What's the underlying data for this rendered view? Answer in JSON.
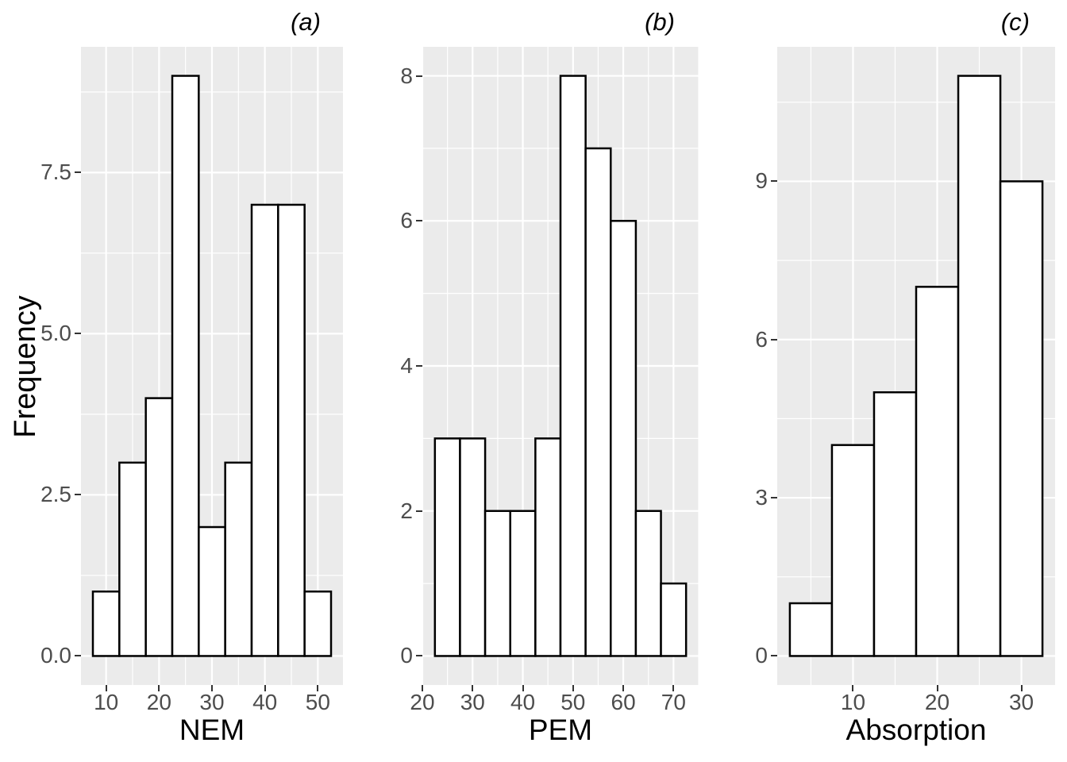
{
  "figure": {
    "ylabel": "Frequency",
    "background": "#FFFFFF",
    "panel_background": "#EBEBEB",
    "grid_color": "#FFFFFF",
    "bar_fill": "#FFFFFF",
    "bar_stroke": "#000000",
    "axis_text_color": "#4D4D4D",
    "axis_title_color": "#000000",
    "tick_mark_color": "#333333"
  },
  "chart_data": [
    {
      "type": "bar",
      "subtype": "histogram",
      "title": "(a)",
      "xlabel": "NEM",
      "ylabel": "Frequency",
      "bin_start": 7.5,
      "bin_width": 5,
      "bin_edges": [
        7.5,
        12.5,
        17.5,
        22.5,
        27.5,
        32.5,
        37.5,
        42.5,
        47.5,
        52.5
      ],
      "values": [
        1,
        3,
        4,
        9,
        2,
        3,
        7,
        7,
        1
      ],
      "x_ticks": [
        10,
        20,
        30,
        40,
        50
      ],
      "y_ticks": [
        "0.0",
        "2.5",
        "5.0",
        "7.5"
      ],
      "y_tick_values": [
        0,
        2.5,
        5,
        7.5
      ],
      "xlim": [
        5.25,
        54.75
      ],
      "ylim": [
        -0.45,
        9.45
      ],
      "grid": true,
      "legend": false
    },
    {
      "type": "bar",
      "subtype": "histogram",
      "title": "(b)",
      "xlabel": "PEM",
      "ylabel": "Frequency",
      "bin_start": 22.5,
      "bin_width": 5,
      "bin_edges": [
        22.5,
        27.5,
        32.5,
        37.5,
        42.5,
        47.5,
        52.5,
        57.5,
        62.5,
        67.5,
        72.5
      ],
      "values": [
        3,
        3,
        2,
        2,
        3,
        8,
        7,
        6,
        2,
        1
      ],
      "x_ticks": [
        20,
        30,
        40,
        50,
        60,
        70
      ],
      "y_ticks": [
        "0",
        "2",
        "4",
        "6",
        "8"
      ],
      "y_tick_values": [
        0,
        2,
        4,
        6,
        8
      ],
      "xlim": [
        20,
        75
      ],
      "ylim": [
        -0.4,
        8.4
      ],
      "grid": true,
      "legend": false
    },
    {
      "type": "bar",
      "subtype": "histogram",
      "title": "(c)",
      "xlabel": "Absorption",
      "ylabel": "Frequency",
      "bin_start": 2.5,
      "bin_width": 5,
      "bin_edges": [
        2.5,
        7.5,
        12.5,
        17.5,
        22.5,
        27.5,
        32.5
      ],
      "values": [
        1,
        4,
        5,
        7,
        11,
        9
      ],
      "x_ticks": [
        10,
        20,
        30
      ],
      "y_ticks": [
        "0",
        "3",
        "6",
        "9"
      ],
      "y_tick_values": [
        0,
        3,
        6,
        9
      ],
      "xlim": [
        1,
        34
      ],
      "ylim": [
        -0.55,
        11.55
      ],
      "grid": true,
      "legend": false
    }
  ]
}
